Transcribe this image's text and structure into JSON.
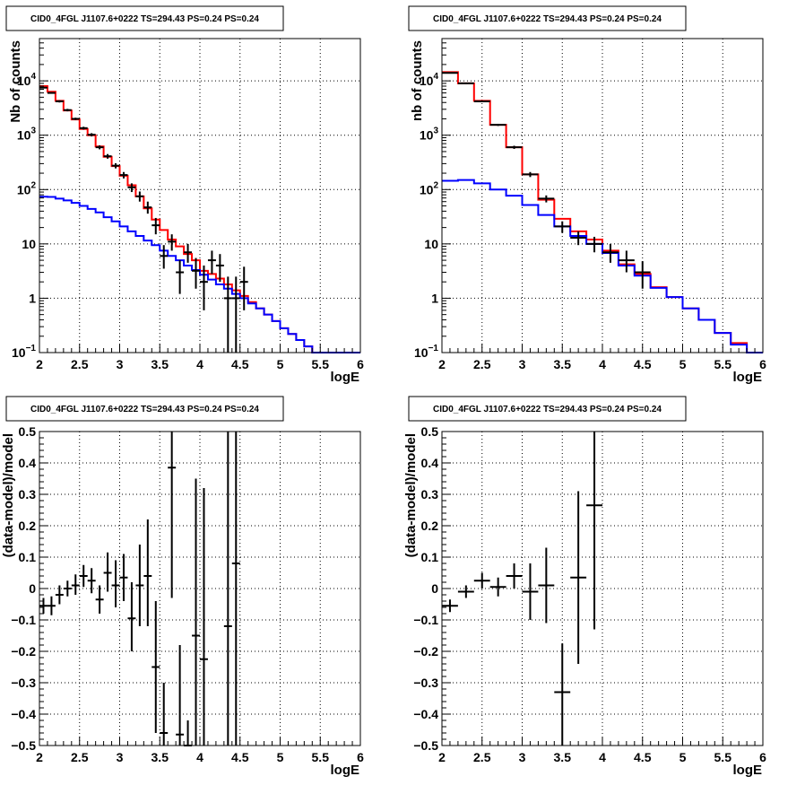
{
  "chart_data": [
    {
      "type": "line",
      "title": "CID0_4FGL J1107.6+0222 TS=294.43 PS=0.24 PS=0.24",
      "xlabel": "logE",
      "ylabel": "Nb of counts",
      "xlim": [
        2,
        6
      ],
      "ylim": [
        0.1,
        60000
      ],
      "yscale": "log",
      "grid": true,
      "x_ticks": [
        "2",
        "2.5",
        "3",
        "3.5",
        "4",
        "4.5",
        "5",
        "5.5",
        "6"
      ],
      "y_ticks": [
        {
          "value": 0.1,
          "label": "10",
          "exp": "−1"
        },
        {
          "value": 1,
          "label": "1",
          "exp": ""
        },
        {
          "value": 10,
          "label": "10",
          "exp": ""
        },
        {
          "value": 100,
          "label": "10",
          "exp": "2"
        },
        {
          "value": 1000,
          "label": "10",
          "exp": "3"
        },
        {
          "value": 10000,
          "label": "10",
          "exp": "4"
        }
      ],
      "bin_edges": [
        2.0,
        2.1,
        2.2,
        2.3,
        2.4,
        2.5,
        2.6,
        2.7,
        2.8,
        2.9,
        3.0,
        3.1,
        3.2,
        3.3,
        3.4,
        3.5,
        3.6,
        3.7,
        3.8,
        3.9,
        4.0,
        4.1,
        4.2,
        4.3,
        4.4,
        4.5,
        4.6,
        4.7,
        4.8,
        4.9,
        5.0,
        5.1,
        5.2,
        5.3,
        5.4,
        5.5,
        5.6,
        5.7,
        5.8,
        5.9,
        6.0
      ],
      "series": [
        {
          "kind": "step",
          "color": "#ff0000",
          "values": [
            8000,
            6300,
            4300,
            2850,
            1950,
            1300,
            1000,
            620,
            400,
            270,
            180,
            120,
            75,
            45,
            28,
            18,
            12,
            9,
            6.5,
            5,
            3.2,
            2.8,
            2.3,
            1.8,
            1.4,
            1.1,
            0.85,
            0.65,
            0.5,
            0.38,
            0.28,
            0.22,
            0.17,
            0.13,
            0.1,
            0.1,
            0.1,
            0.1,
            0.1,
            0.1
          ]
        },
        {
          "kind": "step",
          "color": "#0000ff",
          "values": [
            74,
            73,
            68,
            63,
            57,
            50,
            44,
            38,
            31,
            26,
            21,
            17,
            14,
            11.5,
            9.5,
            7.5,
            6,
            5,
            4,
            3.3,
            2.7,
            2.2,
            1.8,
            1.5,
            1.2,
            1.0,
            0.8,
            0.65,
            0.5,
            0.38,
            0.28,
            0.22,
            0.17,
            0.13,
            0.1,
            0.1,
            0.1,
            0.1,
            0.1,
            0.1
          ]
        },
        {
          "kind": "points",
          "color": "#000000",
          "points": [
            {
              "x": 2.05,
              "y": 7500,
              "lo": 7300,
              "hi": 7700
            },
            {
              "x": 2.15,
              "y": 6000,
              "lo": 5800,
              "hi": 6200
            },
            {
              "x": 2.25,
              "y": 4200,
              "lo": 4000,
              "hi": 4400
            },
            {
              "x": 2.35,
              "y": 2900,
              "lo": 2750,
              "hi": 3050
            },
            {
              "x": 2.45,
              "y": 2000,
              "lo": 1900,
              "hi": 2100
            },
            {
              "x": 2.55,
              "y": 1350,
              "lo": 1270,
              "hi": 1430
            },
            {
              "x": 2.65,
              "y": 1020,
              "lo": 950,
              "hi": 1090
            },
            {
              "x": 2.75,
              "y": 600,
              "lo": 550,
              "hi": 650
            },
            {
              "x": 2.85,
              "y": 410,
              "lo": 370,
              "hi": 450
            },
            {
              "x": 2.95,
              "y": 275,
              "lo": 245,
              "hi": 305
            },
            {
              "x": 3.05,
              "y": 185,
              "lo": 160,
              "hi": 210
            },
            {
              "x": 3.15,
              "y": 110,
              "lo": 90,
              "hi": 130
            },
            {
              "x": 3.25,
              "y": 75,
              "lo": 60,
              "hi": 92
            },
            {
              "x": 3.35,
              "y": 47,
              "lo": 36,
              "hi": 60
            },
            {
              "x": 3.45,
              "y": 22,
              "lo": 15,
              "hi": 30
            },
            {
              "x": 3.55,
              "y": 6,
              "lo": 3.5,
              "hi": 9.5
            },
            {
              "x": 3.65,
              "y": 11,
              "lo": 7.5,
              "hi": 15
            },
            {
              "x": 3.75,
              "y": 3,
              "lo": 1.2,
              "hi": 5
            },
            {
              "x": 3.85,
              "y": 7,
              "lo": 4.5,
              "hi": 10
            },
            {
              "x": 3.95,
              "y": 3.2,
              "lo": 1.5,
              "hi": 5.5
            },
            {
              "x": 4.05,
              "y": 2,
              "lo": 0.6,
              "hi": 4
            },
            {
              "x": 4.15,
              "y": 5,
              "lo": 2.8,
              "hi": 7.5
            },
            {
              "x": 4.25,
              "y": 4,
              "lo": 2,
              "hi": 6.5
            },
            {
              "x": 4.35,
              "y": 1,
              "lo": 0.1,
              "hi": 2.5
            },
            {
              "x": 4.45,
              "y": 1,
              "lo": 0.1,
              "hi": 2.5
            },
            {
              "x": 4.55,
              "y": 2,
              "lo": 0.6,
              "hi": 3.8
            }
          ]
        }
      ]
    },
    {
      "type": "line",
      "title": "CID0_4FGL J1107.6+0222 TS=294.43 PS=0.24 PS=0.24",
      "xlabel": "logE",
      "ylabel": "nb of counts",
      "xlim": [
        2,
        6
      ],
      "ylim": [
        0.1,
        60000
      ],
      "yscale": "log",
      "grid": true,
      "x_ticks": [
        "2",
        "2.5",
        "3",
        "3.5",
        "4",
        "4.5",
        "5",
        "5.5",
        "6"
      ],
      "y_ticks": [
        {
          "value": 0.1,
          "label": "10",
          "exp": "−1"
        },
        {
          "value": 1,
          "label": "1",
          "exp": ""
        },
        {
          "value": 10,
          "label": "10",
          "exp": ""
        },
        {
          "value": 100,
          "label": "10",
          "exp": "2"
        },
        {
          "value": 1000,
          "label": "10",
          "exp": "3"
        },
        {
          "value": 10000,
          "label": "10",
          "exp": "4"
        }
      ],
      "bin_edges": [
        2.0,
        2.2,
        2.4,
        2.6,
        2.8,
        3.0,
        3.2,
        3.4,
        3.6,
        3.8,
        4.0,
        4.2,
        4.4,
        4.6,
        4.8,
        5.0,
        5.2,
        5.4,
        5.6,
        5.8,
        6.0
      ],
      "series": [
        {
          "kind": "step",
          "color": "#ff0000",
          "values": [
            14500,
            9000,
            4300,
            1550,
            600,
            190,
            65,
            29,
            17,
            12,
            7.5,
            4.2,
            2.8,
            1.6,
            1.05,
            0.65,
            0.4,
            0.23,
            0.15,
            0.1
          ]
        },
        {
          "kind": "step",
          "color": "#0000ff",
          "values": [
            145,
            150,
            130,
            100,
            77,
            52,
            34,
            21,
            14,
            10,
            6.8,
            4.0,
            2.6,
            1.55,
            1.05,
            0.65,
            0.4,
            0.23,
            0.14,
            0.1
          ]
        },
        {
          "kind": "points",
          "color": "#000000",
          "points": [
            {
              "x": 2.1,
              "y": 14000,
              "lo": 13700,
              "hi": 14300
            },
            {
              "x": 2.3,
              "y": 9000,
              "lo": 8750,
              "hi": 9250
            },
            {
              "x": 2.5,
              "y": 4200,
              "lo": 4050,
              "hi": 4350
            },
            {
              "x": 2.7,
              "y": 1550,
              "lo": 1480,
              "hi": 1620
            },
            {
              "x": 2.9,
              "y": 600,
              "lo": 560,
              "hi": 640
            },
            {
              "x": 3.1,
              "y": 190,
              "lo": 170,
              "hi": 210
            },
            {
              "x": 3.3,
              "y": 68,
              "lo": 58,
              "hi": 78
            },
            {
              "x": 3.5,
              "y": 21,
              "lo": 16,
              "hi": 26
            },
            {
              "x": 3.7,
              "y": 13,
              "lo": 9.5,
              "hi": 17
            },
            {
              "x": 3.9,
              "y": 10,
              "lo": 7,
              "hi": 13.5
            },
            {
              "x": 4.1,
              "y": 7,
              "lo": 4.5,
              "hi": 10
            },
            {
              "x": 4.3,
              "y": 5,
              "lo": 3,
              "hi": 7.5
            },
            {
              "x": 4.5,
              "y": 3,
              "lo": 1.5,
              "hi": 4.8
            }
          ]
        }
      ]
    },
    {
      "type": "scatter",
      "title": "CID0_4FGL J1107.6+0222 TS=294.43 PS=0.24 PS=0.24",
      "xlabel": "logE",
      "ylabel": "(data-model)/model",
      "xlim": [
        2,
        6
      ],
      "ylim": [
        -0.5,
        0.5
      ],
      "grid": true,
      "x_ticks": [
        "2",
        "2.5",
        "3",
        "3.5",
        "4",
        "4.5",
        "5",
        "5.5",
        "6"
      ],
      "y_ticks": [
        {
          "value": -0.5,
          "label": "−0.5"
        },
        {
          "value": -0.4,
          "label": "−0.4"
        },
        {
          "value": -0.3,
          "label": "−0.3"
        },
        {
          "value": -0.2,
          "label": "−0.2"
        },
        {
          "value": -0.1,
          "label": "−0.1"
        },
        {
          "value": 0,
          "label": "0"
        },
        {
          "value": 0.1,
          "label": "0.1"
        },
        {
          "value": 0.2,
          "label": "0.2"
        },
        {
          "value": 0.3,
          "label": "0.3"
        },
        {
          "value": 0.4,
          "label": "0.4"
        },
        {
          "value": 0.5,
          "label": "0.5"
        }
      ],
      "series": [
        {
          "kind": "points",
          "color": "#000000",
          "xhalf": 0.05,
          "points": [
            {
              "x": 2.05,
              "y": -0.055,
              "lo": -0.08,
              "hi": -0.03
            },
            {
              "x": 2.15,
              "y": -0.055,
              "lo": -0.085,
              "hi": -0.025
            },
            {
              "x": 2.25,
              "y": -0.02,
              "lo": -0.05,
              "hi": 0.01
            },
            {
              "x": 2.35,
              "y": 0.0,
              "lo": -0.025,
              "hi": 0.025
            },
            {
              "x": 2.45,
              "y": 0.01,
              "lo": -0.02,
              "hi": 0.045
            },
            {
              "x": 2.55,
              "y": 0.04,
              "lo": 0.005,
              "hi": 0.075
            },
            {
              "x": 2.65,
              "y": 0.025,
              "lo": -0.015,
              "hi": 0.065
            },
            {
              "x": 2.75,
              "y": -0.035,
              "lo": -0.08,
              "hi": 0.01
            },
            {
              "x": 2.85,
              "y": 0.05,
              "lo": -0.01,
              "hi": 0.115
            },
            {
              "x": 2.95,
              "y": 0.01,
              "lo": -0.06,
              "hi": 0.09
            },
            {
              "x": 3.05,
              "y": 0.035,
              "lo": -0.04,
              "hi": 0.11
            },
            {
              "x": 3.15,
              "y": -0.095,
              "lo": -0.2,
              "hi": 0.02
            },
            {
              "x": 3.25,
              "y": 0.01,
              "lo": -0.12,
              "hi": 0.14
            },
            {
              "x": 3.35,
              "y": 0.04,
              "lo": -0.12,
              "hi": 0.22
            },
            {
              "x": 3.45,
              "y": -0.25,
              "lo": -0.46,
              "hi": -0.04
            },
            {
              "x": 3.55,
              "y": -0.46,
              "lo": -0.5,
              "hi": -0.3
            },
            {
              "x": 3.65,
              "y": 0.385,
              "lo": -0.03,
              "hi": 0.5
            },
            {
              "x": 3.75,
              "y": -0.465,
              "lo": -0.5,
              "hi": -0.18
            },
            {
              "x": 3.85,
              "y": -0.5,
              "lo": -0.5,
              "hi": -0.42
            },
            {
              "x": 3.95,
              "y": -0.15,
              "lo": -0.5,
              "hi": 0.35
            },
            {
              "x": 4.05,
              "y": -0.225,
              "lo": -0.5,
              "hi": 0.32
            },
            {
              "x": 4.35,
              "y": -0.12,
              "lo": -0.5,
              "hi": 0.5
            },
            {
              "x": 4.45,
              "y": 0.08,
              "lo": -0.5,
              "hi": 0.5
            }
          ]
        }
      ]
    },
    {
      "type": "scatter",
      "title": "CID0_4FGL J1107.6+0222 TS=294.43 PS=0.24 PS=0.24",
      "xlabel": "logE",
      "ylabel": "(data-model)/model",
      "xlim": [
        2,
        6
      ],
      "ylim": [
        -0.5,
        0.5
      ],
      "grid": true,
      "x_ticks": [
        "2",
        "2.5",
        "3",
        "3.5",
        "4",
        "4.5",
        "5",
        "5.5",
        "6"
      ],
      "y_ticks": [
        {
          "value": -0.5,
          "label": "−0.5"
        },
        {
          "value": -0.4,
          "label": "−0.4"
        },
        {
          "value": -0.3,
          "label": "−0.3"
        },
        {
          "value": -0.2,
          "label": "−0.2"
        },
        {
          "value": -0.1,
          "label": "−0.1"
        },
        {
          "value": 0,
          "label": "0"
        },
        {
          "value": 0.1,
          "label": "0.1"
        },
        {
          "value": 0.2,
          "label": "0.2"
        },
        {
          "value": 0.3,
          "label": "0.3"
        },
        {
          "value": 0.4,
          "label": "0.4"
        },
        {
          "value": 0.5,
          "label": "0.5"
        }
      ],
      "series": [
        {
          "kind": "points",
          "color": "#000000",
          "xhalf": 0.1,
          "points": [
            {
              "x": 2.1,
              "y": -0.055,
              "lo": -0.075,
              "hi": -0.035
            },
            {
              "x": 2.3,
              "y": -0.01,
              "lo": -0.03,
              "hi": 0.01
            },
            {
              "x": 2.5,
              "y": 0.025,
              "lo": 0.0,
              "hi": 0.05
            },
            {
              "x": 2.7,
              "y": 0.005,
              "lo": -0.025,
              "hi": 0.035
            },
            {
              "x": 2.9,
              "y": 0.04,
              "lo": 0.0,
              "hi": 0.08
            },
            {
              "x": 3.1,
              "y": -0.01,
              "lo": -0.1,
              "hi": 0.08
            },
            {
              "x": 3.3,
              "y": 0.01,
              "lo": -0.11,
              "hi": 0.13
            },
            {
              "x": 3.5,
              "y": -0.33,
              "lo": -0.5,
              "hi": -0.175
            },
            {
              "x": 3.7,
              "y": 0.035,
              "lo": -0.24,
              "hi": 0.31
            },
            {
              "x": 3.9,
              "y": 0.265,
              "lo": -0.13,
              "hi": 0.5
            }
          ]
        }
      ]
    }
  ]
}
